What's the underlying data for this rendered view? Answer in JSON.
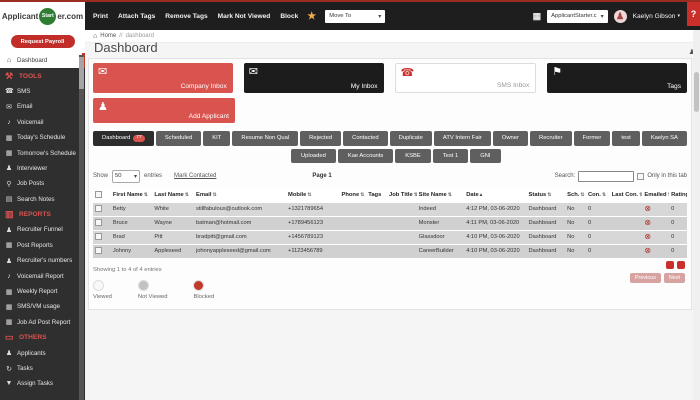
{
  "logo": {
    "part1": "Applicant",
    "part2": "Start",
    "part3": "er.com"
  },
  "colors": {
    "accent": "#c9302c",
    "tile_red": "#d9534f",
    "tile_dark": "#1c1c1c",
    "logo_green": "#2e7d32",
    "toolbar_bg": "#1e1e1e",
    "sidebar_bg": "#2f2f2f"
  },
  "toolbar": {
    "actions": [
      "Print",
      "Attach Tags",
      "Remove Tags",
      "Mark Not Viewed",
      "Block"
    ],
    "star_icon": "star-icon",
    "move_select": "Move To",
    "account_select": "ApplicantStarter.c",
    "user_name": "Kaelyn Gibson",
    "help_label": "?"
  },
  "breadcrumb": {
    "home": "Home",
    "separator": "//",
    "current": "dashboard"
  },
  "page_title": "Dashboard",
  "sidebar": {
    "payroll_button": "Request Payroll",
    "items": [
      {
        "type": "item",
        "label": "Dashboard",
        "icon": "home-icon",
        "active": true
      },
      {
        "type": "section",
        "label": "TOOLS",
        "icon": "tools-icon"
      },
      {
        "type": "item",
        "label": "SMS",
        "icon": "phone-icon"
      },
      {
        "type": "item",
        "label": "Email",
        "icon": "envelope-icon"
      },
      {
        "type": "item",
        "label": "Voicemail",
        "icon": "microphone-icon"
      },
      {
        "type": "item",
        "label": "Today's Schedule",
        "icon": "calendar-icon"
      },
      {
        "type": "item",
        "label": "Tomorrow's Schedule",
        "icon": "calendar-icon"
      },
      {
        "type": "item",
        "label": "Interviewer",
        "icon": "person-icon"
      },
      {
        "type": "item",
        "label": "Job Posts",
        "icon": "search-icon"
      },
      {
        "type": "item",
        "label": "Search Notes",
        "icon": "notes-icon"
      },
      {
        "type": "section",
        "label": "REPORTS",
        "icon": "reports-icon"
      },
      {
        "type": "item",
        "label": "Recruiter Funnel",
        "icon": "person-icon"
      },
      {
        "type": "item",
        "label": "Post Reports",
        "icon": "calendar-icon"
      },
      {
        "type": "item",
        "label": "Recruiter's numbers",
        "icon": "person-icon"
      },
      {
        "type": "item",
        "label": "Voicemail Report",
        "icon": "microphone-icon"
      },
      {
        "type": "item",
        "label": "Weekly Report",
        "icon": "calendar-icon"
      },
      {
        "type": "item",
        "label": "SMS/VM usage",
        "icon": "calendar-icon"
      },
      {
        "type": "item",
        "label": "Job Ad Post Report",
        "icon": "calendar-icon"
      },
      {
        "type": "section",
        "label": "OTHERS",
        "icon": "inbox-icon"
      },
      {
        "type": "item",
        "label": "Applicants",
        "icon": "person-icon"
      },
      {
        "type": "item",
        "label": "Tasks",
        "icon": "tasks-icon"
      },
      {
        "type": "item",
        "label": "Assign Tasks",
        "icon": "filter-icon"
      }
    ]
  },
  "tiles": [
    {
      "label": "Company Inbox",
      "style": "red",
      "icon": "envelope-icon"
    },
    {
      "label": "My Inbox",
      "style": "dark",
      "icon": "envelope-icon"
    },
    {
      "label": "SMS Inbox",
      "style": "white",
      "icon": "phone-icon"
    },
    {
      "label": "Tags",
      "style": "dark",
      "icon": "tag-icon"
    }
  ],
  "add_tile": {
    "label": "Add Applicant",
    "icon": "person-icon"
  },
  "tabs": {
    "row1": [
      {
        "label": "Dashboard",
        "badge": "77",
        "active": true
      },
      {
        "label": "Scheduled"
      },
      {
        "label": "KIT"
      },
      {
        "label": "Resume Non Qual"
      },
      {
        "label": "Rejected"
      },
      {
        "label": "Contacted"
      },
      {
        "label": "Duplicate"
      },
      {
        "label": "ATV Intern Fair"
      },
      {
        "label": "Owner"
      },
      {
        "label": "Recruiter"
      },
      {
        "label": "Former"
      },
      {
        "label": "test"
      },
      {
        "label": "Kaelyn SA"
      }
    ],
    "row2": [
      {
        "label": "Uploaded"
      },
      {
        "label": "Kae Accounts"
      },
      {
        "label": "KSBE"
      },
      {
        "label": "Test 1"
      },
      {
        "label": "GNI"
      }
    ]
  },
  "controls": {
    "show_label": "Show",
    "entries_value": "50",
    "entries_label": "entries",
    "mark_contacted": "Mark Contacted",
    "page_label": "Page 1",
    "search_label": "Search:",
    "only_tab_label": "Only in this tab"
  },
  "table": {
    "headers": [
      {
        "label": "First Name",
        "sort": "both"
      },
      {
        "label": "Last Name",
        "sort": "both"
      },
      {
        "label": "Email",
        "sort": "both"
      },
      {
        "label": "Mobile",
        "sort": "both"
      },
      {
        "label": "Phone",
        "sort": "both"
      },
      {
        "label": "Tags",
        "sort": ""
      },
      {
        "label": "Job Title",
        "sort": "both"
      },
      {
        "label": "Site Name",
        "sort": "both"
      },
      {
        "label": "Date",
        "sort": "asc"
      },
      {
        "label": "Status",
        "sort": "both"
      },
      {
        "label": "Sch.",
        "sort": "both"
      },
      {
        "label": "Con.",
        "sort": "both"
      },
      {
        "label": "Last Con.",
        "sort": "both"
      },
      {
        "label": "Emailed",
        "sort": "both"
      },
      {
        "label": "Rating",
        "sort": "both"
      }
    ],
    "rows": [
      {
        "first": "Betty",
        "last": "White",
        "email": "stillfabulous@outlook.com",
        "mobile": "+1321789654",
        "phone": "",
        "tags": "",
        "job_title": "",
        "site": "Indeed",
        "date": "4:12 PM, 03-06-2020",
        "status": "Dashboard",
        "sch": "No",
        "con": "0",
        "last_con": "",
        "emailed": "blocked",
        "rating": "0"
      },
      {
        "first": "Bruce",
        "last": "Wayne",
        "email": "batman@hotmail.com",
        "mobile": "+1789456123",
        "phone": "",
        "tags": "",
        "job_title": "",
        "site": "Monster",
        "date": "4:11 PM, 03-06-2020",
        "status": "Dashboard",
        "sch": "No",
        "con": "0",
        "last_con": "",
        "emailed": "blocked",
        "rating": "0"
      },
      {
        "first": "Brad",
        "last": "Pitt",
        "email": "bradpitt@gmail.com",
        "mobile": "+1456789123",
        "phone": "",
        "tags": "",
        "job_title": "",
        "site": "Glassdoor",
        "date": "4:10 PM, 03-06-2020",
        "status": "Dashboard",
        "sch": "No",
        "con": "0",
        "last_con": "",
        "emailed": "blocked",
        "rating": "0"
      },
      {
        "first": "Johnny",
        "last": "Appleseed",
        "email": "johnnyappleseed@gmail.com",
        "mobile": "+1123456789",
        "phone": "",
        "tags": "",
        "job_title": "",
        "site": "CareerBuilder",
        "date": "4:10 PM, 03-06-2020",
        "status": "Dashboard",
        "sch": "No",
        "con": "0",
        "last_con": "",
        "emailed": "blocked",
        "rating": "0"
      }
    ]
  },
  "footer": {
    "showing": "Showing 1 to 4 of 4 entries",
    "prev": "Previous",
    "next": "Next"
  },
  "legend": [
    {
      "label": "Viewed",
      "color": "#f8f8f8"
    },
    {
      "label": "Not Viewed",
      "color": "#c2c2c2"
    },
    {
      "label": "Blocked",
      "color": "#c0392b"
    }
  ]
}
